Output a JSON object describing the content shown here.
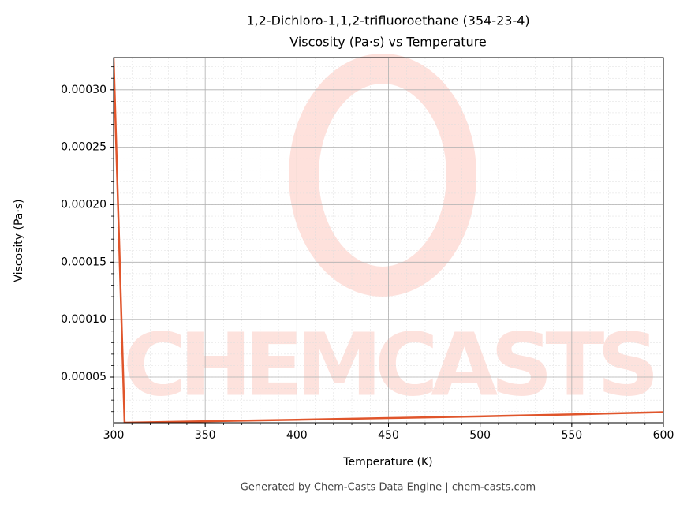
{
  "chart_data": {
    "type": "line",
    "title": "1,2-Dichloro-1,1,2-trifluoroethane (354-23-4)",
    "subtitle": "Viscosity (Pa·s) vs Temperature",
    "x_label": "Temperature (K)",
    "y_label": "Viscosity (Pa·s)",
    "footer": "Generated by Chem-Casts Data Engine | chem-casts.com",
    "watermark": "CHEMCASTS",
    "x": [
      300,
      306,
      350,
      400,
      450,
      500,
      550,
      600
    ],
    "series": [
      {
        "name": "Viscosity",
        "color": "#e0552b",
        "values": [
          0.000328,
          1.02e-05,
          1.15e-05,
          1.28e-05,
          1.43e-05,
          1.58e-05,
          1.75e-05,
          1.95e-05
        ]
      }
    ],
    "xlim": [
      300,
      600
    ],
    "xticks": [
      300,
      350,
      400,
      450,
      500,
      550,
      600
    ],
    "ylim": [
      1.02e-05,
      0.000328
    ],
    "yticks": [
      5e-05,
      {
        "value": 0.0001,
        "label": "0.00010"
      },
      0.00015,
      {
        "value": 0.0002,
        "label": "0.00020"
      },
      0.00025,
      {
        "value": 0.0003,
        "label": "0.00030"
      }
    ],
    "grid": true,
    "minor_grid": true
  }
}
